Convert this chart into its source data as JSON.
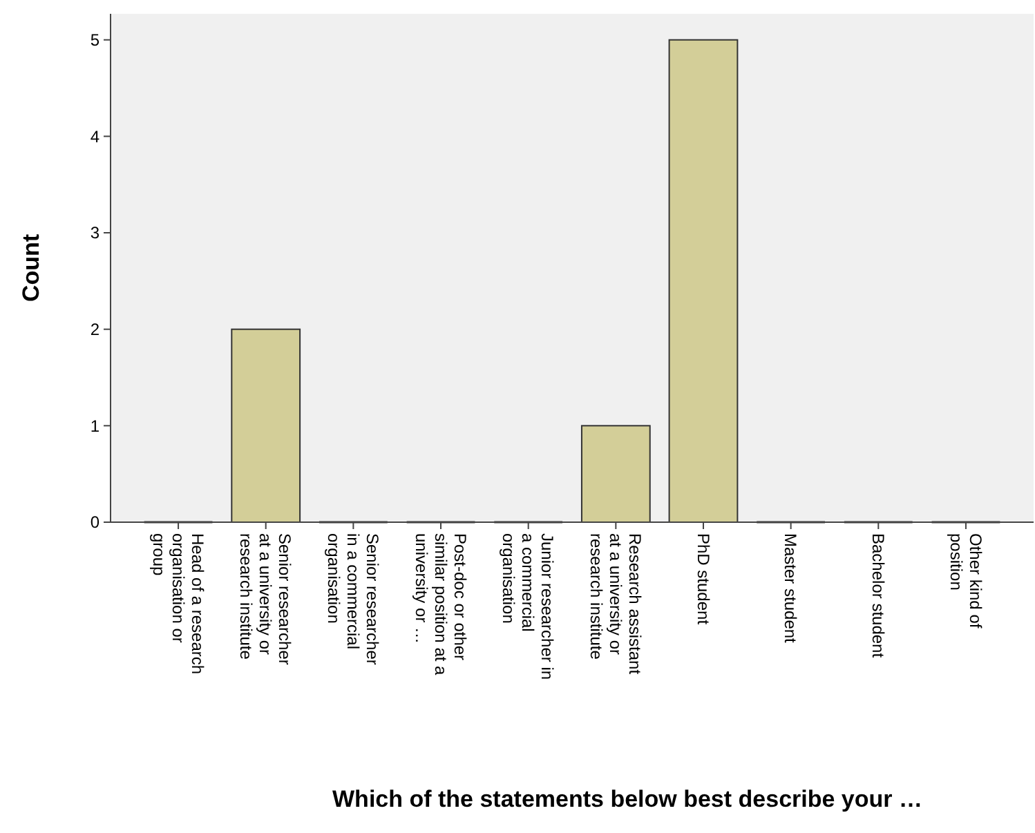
{
  "chart_data": {
    "type": "bar",
    "xlabel": "Which of the statements below best describe your …",
    "ylabel": "Count",
    "categories": [
      "Head of a research organisation or group",
      "Senior researcher at a university or research institute",
      "Senior researcher in a commercial organisation",
      "Post-doc or other similar position at a university or …",
      "Junior researcher in a commercial organisation",
      "Research assistant at a university or research institute",
      "PhD student",
      "Master student",
      "Bachelor student",
      "Other kind of position"
    ],
    "values": [
      0,
      2,
      0,
      0,
      0,
      1,
      5,
      0,
      0,
      0
    ],
    "color": "#d3ce98",
    "ylim": [
      0,
      5.27
    ],
    "yticks": [
      0,
      1,
      2,
      3,
      4,
      5
    ],
    "grid": false
  }
}
